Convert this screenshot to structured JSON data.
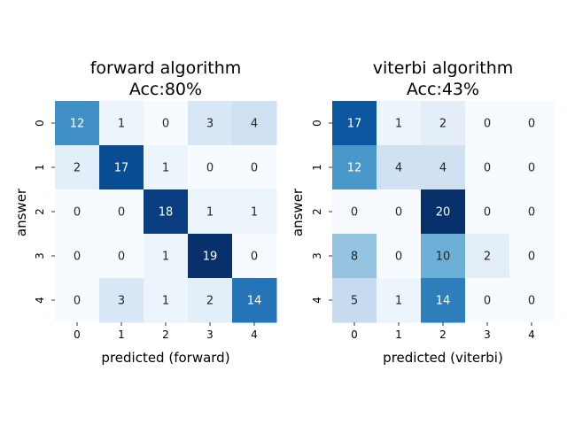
{
  "chart_data": [
    {
      "type": "heatmap",
      "title": "forward algorithm",
      "subtitle": "Acc:80%",
      "xlabel": "predicted (forward)",
      "ylabel": "answer",
      "x_ticks": [
        "0",
        "1",
        "2",
        "3",
        "4"
      ],
      "y_ticks": [
        "0",
        "1",
        "2",
        "3",
        "4"
      ],
      "matrix": [
        [
          12,
          1,
          0,
          3,
          4
        ],
        [
          2,
          17,
          1,
          0,
          0
        ],
        [
          0,
          0,
          18,
          1,
          1
        ],
        [
          0,
          0,
          1,
          19,
          0
        ],
        [
          0,
          3,
          1,
          2,
          14
        ]
      ],
      "colormap": "Blues",
      "vmax": 19
    },
    {
      "type": "heatmap",
      "title": "viterbi algorithm",
      "subtitle": "Acc:43%",
      "xlabel": "predicted (viterbi)",
      "ylabel": "answer",
      "x_ticks": [
        "0",
        "1",
        "2",
        "3",
        "4"
      ],
      "y_ticks": [
        "0",
        "1",
        "2",
        "3",
        "4"
      ],
      "matrix": [
        [
          17,
          1,
          2,
          0,
          0
        ],
        [
          12,
          4,
          4,
          0,
          0
        ],
        [
          0,
          0,
          20,
          0,
          0
        ],
        [
          8,
          0,
          10,
          2,
          0
        ],
        [
          5,
          1,
          14,
          0,
          0
        ]
      ],
      "colormap": "Blues",
      "vmax": 20
    }
  ]
}
